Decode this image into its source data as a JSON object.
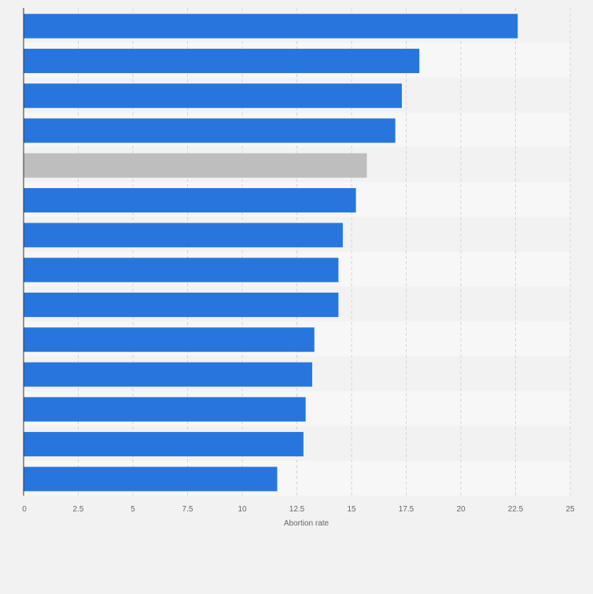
{
  "chart_data": {
    "type": "bar",
    "orientation": "horizontal",
    "title": "",
    "xlabel": "Abortion rate",
    "ylabel": "",
    "xlim": [
      0,
      25
    ],
    "xticks": [
      0,
      2.5,
      5,
      7.5,
      10,
      12.5,
      15,
      17.5,
      20,
      22.5,
      25
    ],
    "xtick_labels": [
      "0",
      "2.5",
      "5",
      "7.5",
      "10",
      "12.5",
      "15",
      "17.5",
      "20",
      "22.5",
      "25"
    ],
    "categories": [
      "",
      "",
      "",
      "",
      "",
      "",
      "",
      "",
      "",
      "",
      "",
      "",
      "",
      ""
    ],
    "values": [
      22.6,
      18.1,
      17.3,
      17.0,
      15.7,
      15.2,
      14.6,
      14.4,
      14.4,
      13.3,
      13.2,
      12.9,
      12.8,
      11.6
    ],
    "highlight_index": 4,
    "grid": true,
    "colors": {
      "bar": "#2876dd",
      "highlight": "#bebebe",
      "band_light": "#f7f7f7",
      "band_dark": "#f2f2f2",
      "grid": "#d5d5d5",
      "axis": "#333333",
      "tick_text": "#666666",
      "background": "#f2f2f2"
    }
  }
}
